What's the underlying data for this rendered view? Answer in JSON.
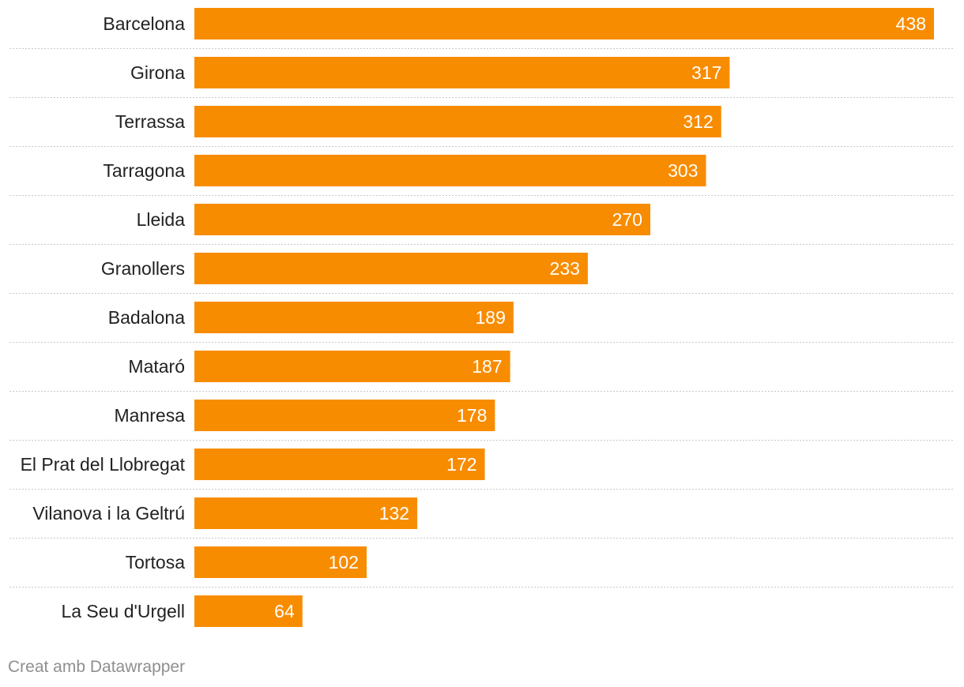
{
  "chart_data": {
    "type": "bar",
    "orientation": "horizontal",
    "categories": [
      "Barcelona",
      "Girona",
      "Terrassa",
      "Tarragona",
      "Lleida",
      "Granollers",
      "Badalona",
      "Mataró",
      "Manresa",
      "El Prat del Llobregat",
      "Vilanova i la Geltrú",
      "Tortosa",
      "La Seu d'Urgell"
    ],
    "values": [
      438,
      317,
      312,
      303,
      270,
      233,
      189,
      187,
      178,
      172,
      132,
      102,
      64
    ],
    "xlim": [
      0,
      438
    ],
    "bar_color": "#f88c00",
    "value_label_color": "#ffffff",
    "category_label_color": "#222222",
    "separator_color": "#c8c8c8"
  },
  "footer": {
    "credit": "Creat amb Datawrapper"
  }
}
